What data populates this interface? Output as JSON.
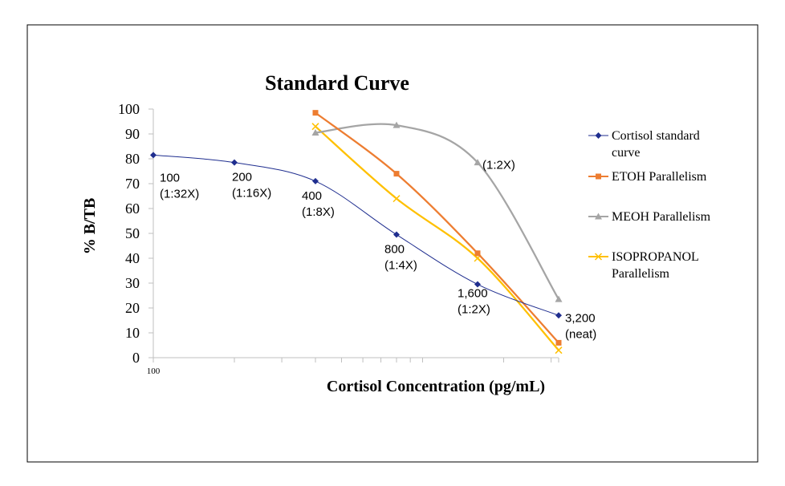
{
  "chart_data": {
    "type": "line",
    "title": "Standard Curve",
    "xlabel": "Cortisol Concentration (pg/mL)",
    "ylabel": "% B/TB",
    "x_scale": "log",
    "xlim": [
      100,
      3200
    ],
    "ylim": [
      0,
      100
    ],
    "y_ticks": [
      0,
      10,
      20,
      30,
      40,
      50,
      60,
      70,
      80,
      90,
      100
    ],
    "x_tick_label": "100",
    "legend_position": "right",
    "series": [
      {
        "name": "Cortisol standard curve",
        "color": "#1f2e8f",
        "marker": "diamond",
        "x": [
          100,
          200,
          400,
          800,
          1600,
          3200
        ],
        "values": [
          81.5,
          78.5,
          71,
          49.5,
          29.5,
          17
        ]
      },
      {
        "name": "ETOH Parallelism",
        "color": "#ed7d31",
        "marker": "square",
        "x": [
          400,
          800,
          1600,
          3200
        ],
        "values": [
          98.5,
          74,
          42,
          6
        ]
      },
      {
        "name": "MEOH Parallelism",
        "color": "#a5a5a5",
        "marker": "triangle",
        "x": [
          400,
          800,
          1600,
          3200
        ],
        "values": [
          90.5,
          93.5,
          78.5,
          23.5
        ]
      },
      {
        "name": "ISOPROPANOL Parallelism",
        "color": "#ffc000",
        "marker": "x",
        "x": [
          400,
          800,
          1600,
          3200
        ],
        "values": [
          93,
          64,
          40,
          3
        ]
      }
    ],
    "annotations": [
      {
        "x": 100,
        "y": 81.5,
        "lines": [
          "100",
          "(1:32X)"
        ]
      },
      {
        "x": 200,
        "y": 78.5,
        "lines": [
          "200",
          "(1:16X)"
        ]
      },
      {
        "x": 400,
        "y": 71,
        "lines": [
          "400",
          "(1:8X)"
        ]
      },
      {
        "x": 800,
        "y": 49.5,
        "lines": [
          "800",
          "(1:4X)"
        ]
      },
      {
        "x": 1600,
        "y": 29.5,
        "lines": [
          "1,600",
          "(1:2X)"
        ]
      },
      {
        "x": 3200,
        "y": 17,
        "lines": [
          "3,200",
          "(neat)"
        ]
      },
      {
        "x": 1600,
        "y": 78.5,
        "lines": [
          "(1:2X)"
        ]
      }
    ]
  }
}
